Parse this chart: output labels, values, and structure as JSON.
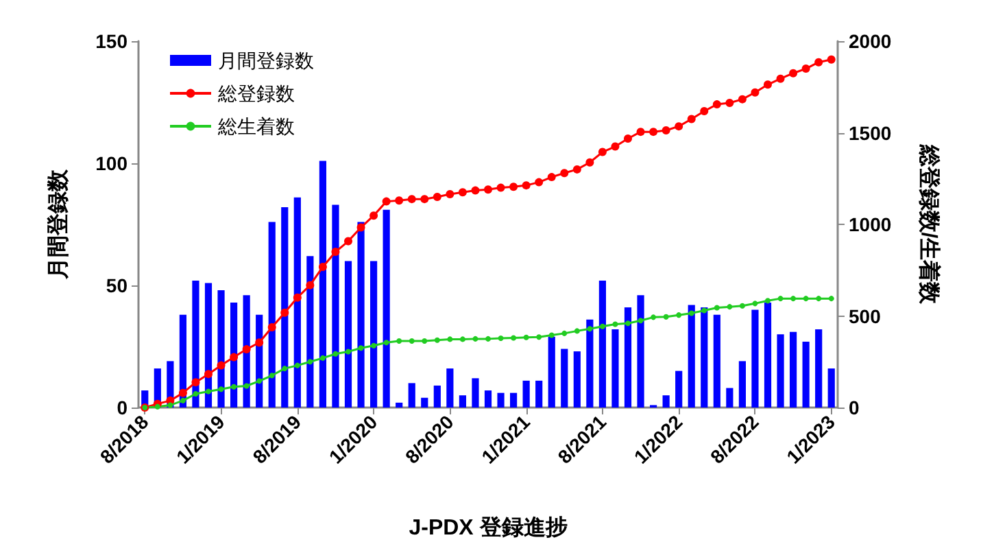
{
  "chart_data": {
    "type": "bar",
    "xlabel": "J-PDX 登録進捗",
    "ylabel": "月間登録数",
    "y2label": "総登録数/生着数",
    "categories": [
      "8/2018",
      null,
      null,
      null,
      null,
      null,
      "1/2019",
      null,
      null,
      null,
      null,
      null,
      "8/2019",
      null,
      null,
      null,
      null,
      null,
      "1/2020",
      null,
      null,
      null,
      null,
      null,
      "8/2020",
      null,
      null,
      null,
      null,
      null,
      "1/2021",
      null,
      null,
      null,
      null,
      null,
      "8/2021",
      null,
      null,
      null,
      null,
      null,
      "1/2022",
      null,
      null,
      null,
      null,
      null,
      "8/2022",
      null,
      null,
      null,
      null,
      null,
      "1/2023"
    ],
    "series": [
      {
        "name": "月間登録数",
        "color": "#0000ff",
        "values": [
          7,
          16,
          19,
          38,
          52,
          51,
          48,
          43,
          46,
          38,
          76,
          82,
          86,
          62,
          101,
          83,
          60,
          76,
          60,
          81,
          2,
          10,
          4,
          9,
          16,
          5,
          12,
          7,
          6,
          6,
          11,
          11,
          29,
          24,
          23,
          36,
          52,
          32,
          41,
          46,
          1,
          5,
          15,
          42,
          41,
          38,
          8,
          19,
          40,
          43,
          30,
          31,
          27,
          32,
          16
        ]
      },
      {
        "name": "総登録数",
        "type": "line",
        "axis": "y2",
        "color": "#ff0000",
        "marker": "circle",
        "values": [
          0,
          20,
          38,
          80,
          138,
          183,
          230,
          275,
          318,
          355,
          438,
          518,
          600,
          668,
          768,
          850,
          908,
          983,
          1048,
          1125,
          1130,
          1138,
          1138,
          1150,
          1165,
          1175,
          1185,
          1190,
          1200,
          1205,
          1213,
          1230,
          1258,
          1280,
          1300,
          1338,
          1395,
          1425,
          1468,
          1505,
          1505,
          1513,
          1535,
          1575,
          1618,
          1655,
          1663,
          1683,
          1720,
          1763,
          1795,
          1825,
          1850,
          1885,
          1900
        ]
      },
      {
        "name": "総生着数",
        "type": "line",
        "axis": "y2",
        "color": "#22cc22",
        "marker": "circle",
        "values": [
          0,
          5,
          13,
          38,
          75,
          88,
          100,
          113,
          118,
          145,
          175,
          213,
          230,
          250,
          270,
          293,
          305,
          325,
          338,
          355,
          363,
          363,
          363,
          368,
          373,
          373,
          375,
          375,
          378,
          380,
          383,
          385,
          395,
          405,
          418,
          430,
          443,
          455,
          460,
          475,
          493,
          495,
          505,
          515,
          530,
          545,
          550,
          555,
          568,
          583,
          595,
          595,
          595,
          595,
          595
        ]
      }
    ],
    "ylim": [
      0,
      150
    ],
    "yticks": [
      0,
      50,
      100,
      150
    ],
    "y2lim": [
      0,
      2000
    ],
    "y2ticks": [
      0,
      500,
      1000,
      1500,
      2000
    ],
    "grid": false,
    "legend": "top left",
    "line_style": "solid"
  }
}
